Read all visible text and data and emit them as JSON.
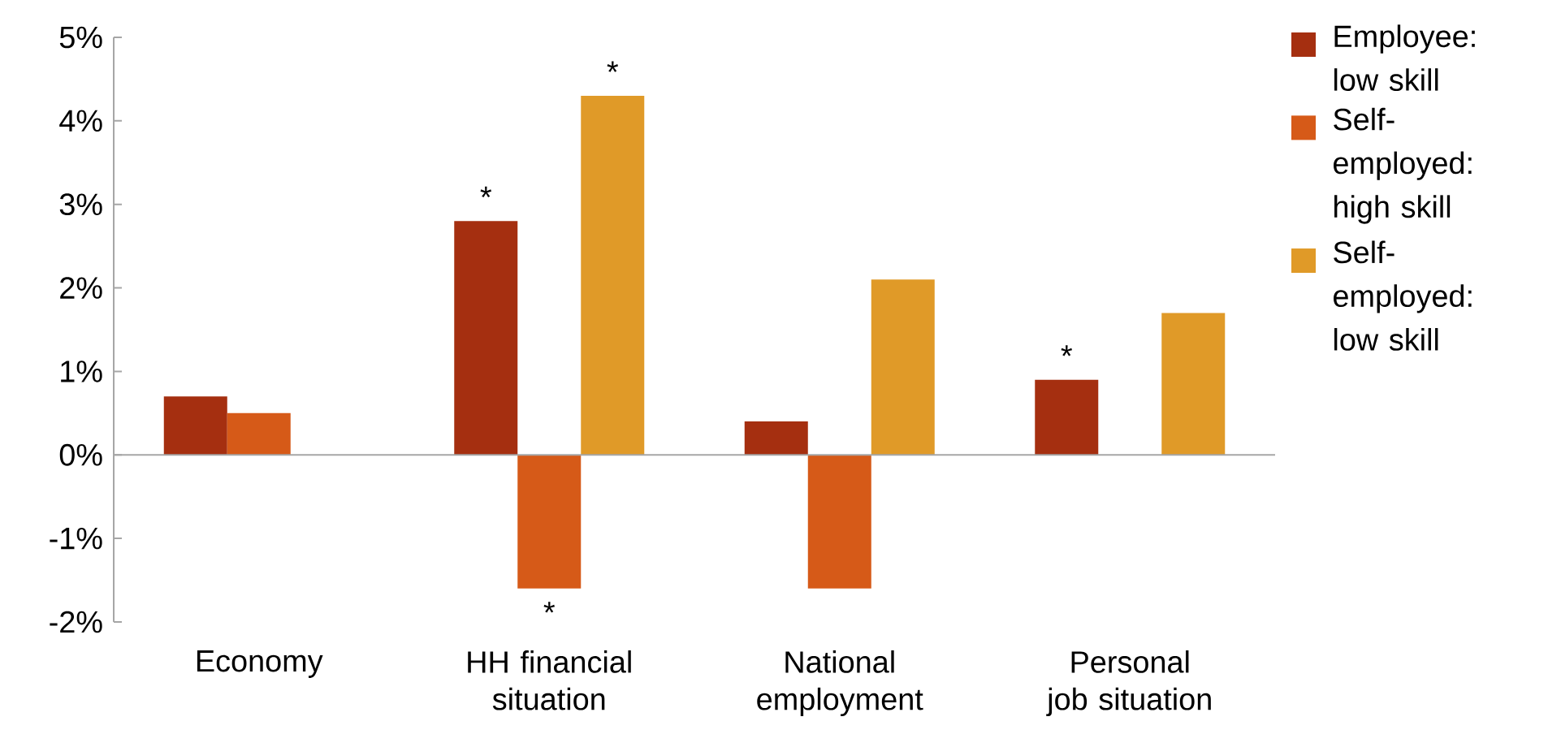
{
  "chart_data": {
    "type": "bar",
    "categories": [
      "Economy",
      "HH financial situation",
      "National employment",
      "Personal job situation"
    ],
    "series": [
      {
        "name": "Employee: low skill",
        "color": "#a52f10",
        "values": [
          0.7,
          2.8,
          0.4,
          0.9
        ],
        "value_labels": [
          null,
          "*",
          null,
          "*"
        ]
      },
      {
        "name": "Self-employed: high skill",
        "color": "#d65a18",
        "values": [
          0.5,
          -1.6,
          -1.6,
          null
        ],
        "value_labels": [
          null,
          "*",
          null,
          null
        ]
      },
      {
        "name": "Self-employed: low skill",
        "color": "#e09a28",
        "values": [
          null,
          4.3,
          2.1,
          1.7
        ],
        "value_labels": [
          null,
          "*",
          null,
          null
        ]
      }
    ],
    "ylim": [
      -2,
      5
    ],
    "yticks": [
      {
        "value": -2,
        "label": "-2%"
      },
      {
        "value": -1,
        "label": "-1%"
      },
      {
        "value": 0,
        "label": "0%"
      },
      {
        "value": 1,
        "label": "1%"
      },
      {
        "value": 2,
        "label": "2%"
      },
      {
        "value": 3,
        "label": "3%"
      },
      {
        "value": 4,
        "label": "4%"
      },
      {
        "value": 5,
        "label": "5%"
      }
    ],
    "legend": "right"
  }
}
